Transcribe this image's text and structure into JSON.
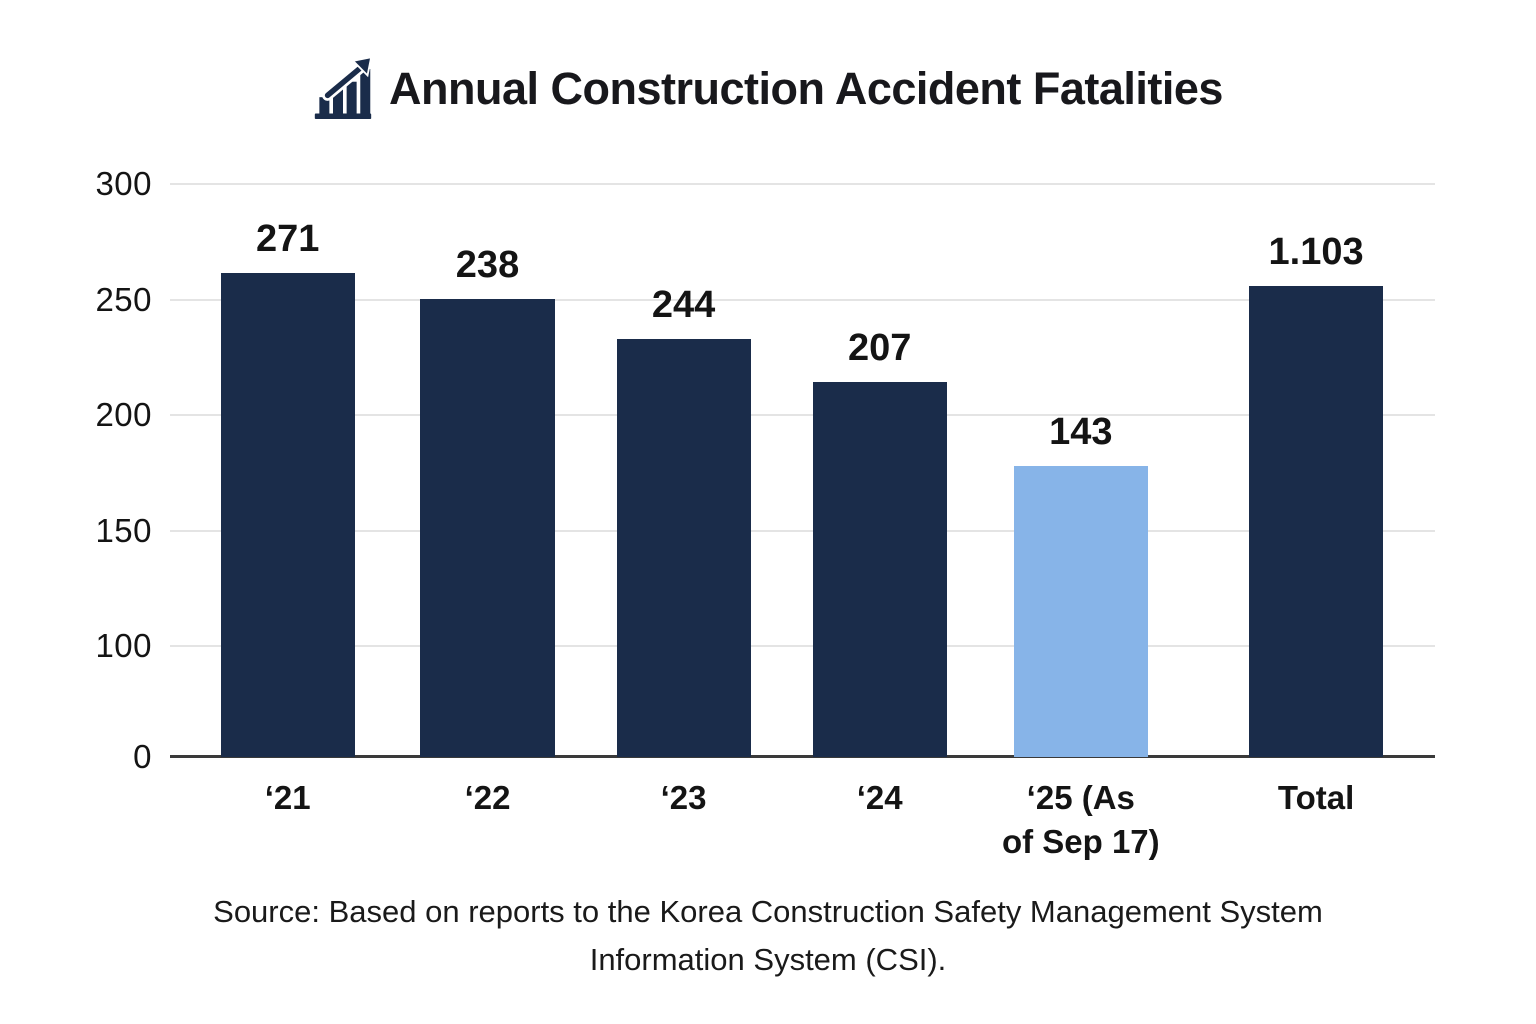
{
  "header": {
    "title": "Annual Construction Accident Fatalities",
    "icon": "bar-chart-rising-icon"
  },
  "chart_data": {
    "type": "bar",
    "title": "Annual Construction Accident Fatalities",
    "categories": [
      "‘21",
      "‘22",
      "‘23",
      "‘24",
      "‘25 (As\nof Sep 17)",
      "Total"
    ],
    "values": [
      271,
      238,
      244,
      207,
      143,
      1103
    ],
    "value_labels": [
      "271",
      "238",
      "244",
      "207",
      "143",
      "1.103"
    ],
    "highlight_index": 4,
    "yticks": [
      "300",
      "250",
      "200",
      "150",
      "100",
      "0"
    ],
    "ylim": [
      0,
      300
    ],
    "grid": true,
    "legend": false,
    "layout": {
      "tick_pos_pct": [
        0,
        20.2,
        40.3,
        60.6,
        80.6,
        100
      ],
      "bar_center_pct": [
        9.3,
        25.1,
        40.6,
        56.1,
        72.0,
        90.6
      ],
      "bar_height_pct": [
        84.5,
        79.9,
        72.9,
        65.4,
        50.8,
        82.2
      ],
      "bar_width_pct": 10.6
    }
  },
  "source": {
    "text": "Source: Based on reports to the Korea Construction Safety Management System\nInformation System (CSI)."
  },
  "colors": {
    "bar": "#1a2c4a",
    "bar_highlight": "#87b4e8",
    "gridline": "#e4e4e4",
    "axis": "#3a3a3a",
    "text": "#141414"
  }
}
